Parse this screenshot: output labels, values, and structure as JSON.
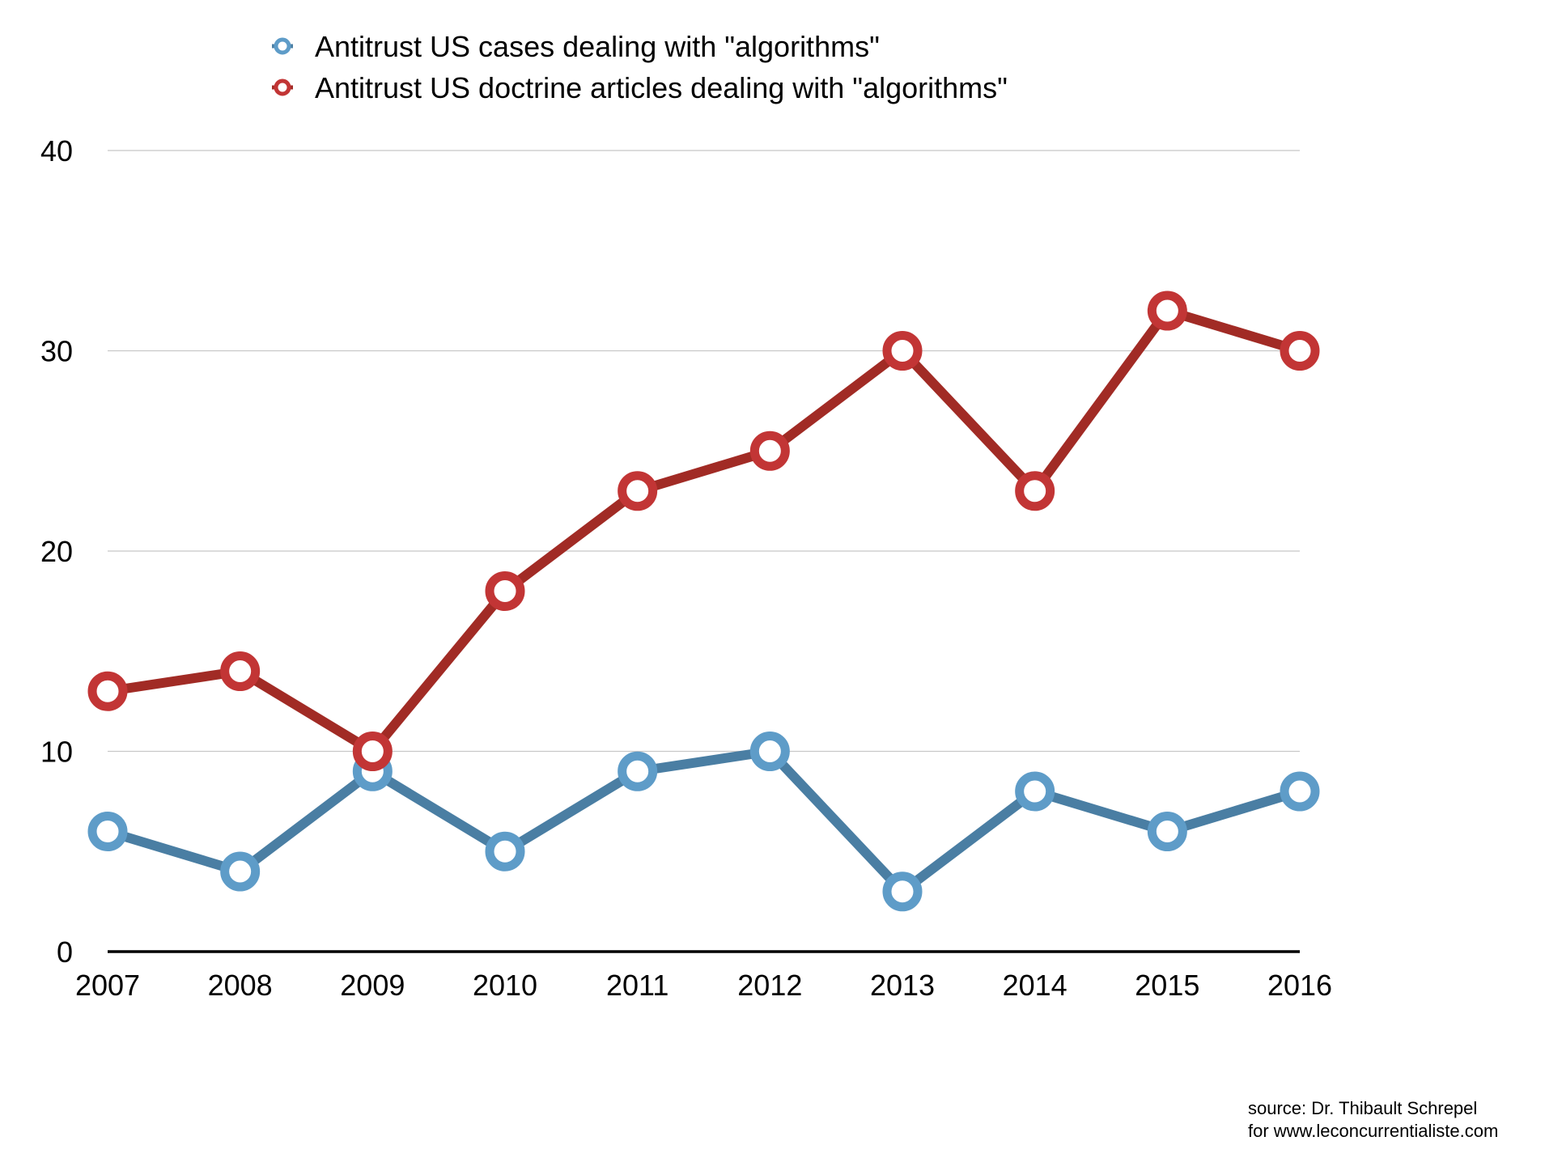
{
  "chart_data": {
    "type": "line",
    "title": "",
    "xlabel": "",
    "ylabel": "",
    "categories": [
      "2007",
      "2008",
      "2009",
      "2010",
      "2011",
      "2012",
      "2013",
      "2014",
      "2015",
      "2016"
    ],
    "ylim": [
      0,
      40
    ],
    "yticks": [
      "0",
      "10",
      "20",
      "30",
      "40"
    ],
    "grid": true,
    "legend_placement": "top",
    "series": [
      {
        "name": "Antitrust US cases dealing with \"algorithms\"",
        "color": "#4a7ea3",
        "marker_color": "#5e9cc8",
        "values": [
          6,
          4,
          9,
          5,
          9,
          10,
          3,
          8,
          6,
          8
        ]
      },
      {
        "name": "Antitrust US doctrine articles dealing with \"algorithms\"",
        "color": "#a12b25",
        "marker_color": "#c23535",
        "values": [
          13,
          14,
          10,
          18,
          23,
          25,
          30,
          23,
          32,
          30
        ]
      }
    ]
  },
  "source": {
    "line1": "source: Dr. Thibault Schrepel",
    "line2": "for www.leconcurrentialiste.com"
  }
}
